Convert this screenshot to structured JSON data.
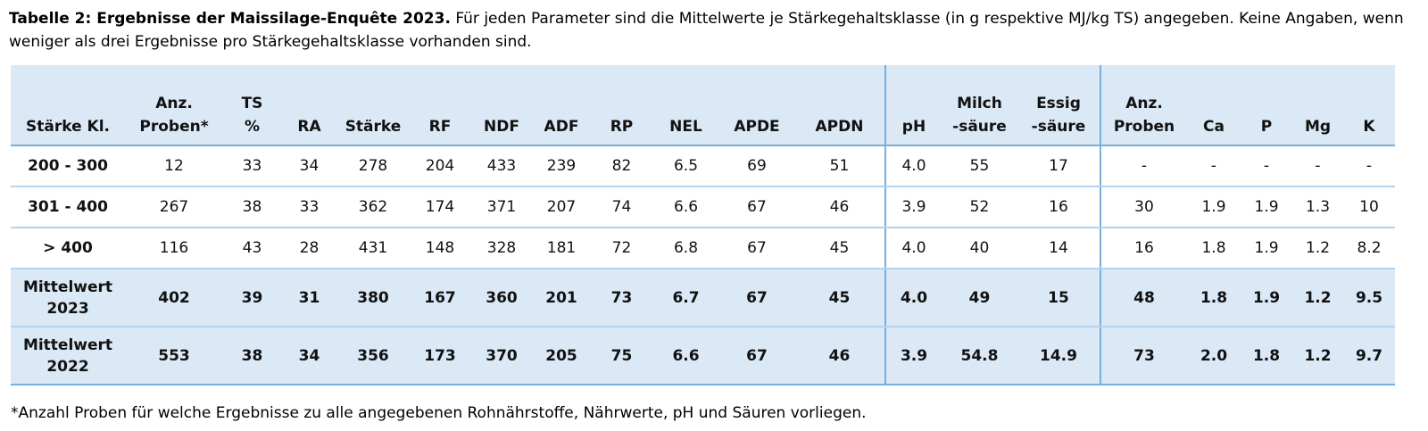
{
  "caption": {
    "bold": "Tabelle 2: Ergebnisse der Maissilage-Enquête 2023.",
    "rest": "Für jeden Parameter sind die Mittelwerte je Stärkegehaltsklasse (in g respektive MJ/kg TS) angegeben. Keine Angaben, wenn weniger als drei Ergebnisse pro Stärkegehaltsklasse vorhanden sind."
  },
  "table": {
    "divider_before": [
      12,
      15
    ],
    "columns": [
      {
        "id": "staerke-kl",
        "top": "",
        "bottom": "Stärke Kl."
      },
      {
        "id": "anz-proben",
        "top": "Anz.",
        "bottom": "Proben*"
      },
      {
        "id": "ts-prozent",
        "top": "TS",
        "bottom": "%"
      },
      {
        "id": "ra",
        "top": "",
        "bottom": "RA"
      },
      {
        "id": "staerke",
        "top": "",
        "bottom": "Stärke"
      },
      {
        "id": "rf",
        "top": "",
        "bottom": "RF"
      },
      {
        "id": "ndf",
        "top": "",
        "bottom": "NDF"
      },
      {
        "id": "adf",
        "top": "",
        "bottom": "ADF"
      },
      {
        "id": "rp",
        "top": "",
        "bottom": "RP"
      },
      {
        "id": "nel",
        "top": "",
        "bottom": "NEL"
      },
      {
        "id": "apde",
        "top": "",
        "bottom": "APDE"
      },
      {
        "id": "apdn",
        "top": "",
        "bottom": "APDN"
      },
      {
        "id": "ph",
        "top": "",
        "bottom": "pH"
      },
      {
        "id": "milchsaeure",
        "top": "Milch",
        "bottom": "-säure"
      },
      {
        "id": "essigsaeure",
        "top": "Essig",
        "bottom": "-säure"
      },
      {
        "id": "anz-proben-2",
        "top": "Anz.",
        "bottom": "Proben"
      },
      {
        "id": "ca",
        "top": "",
        "bottom": "Ca"
      },
      {
        "id": "p",
        "top": "",
        "bottom": "P"
      },
      {
        "id": "mg",
        "top": "",
        "bottom": "Mg"
      },
      {
        "id": "k",
        "top": "",
        "bottom": "K"
      }
    ],
    "rows": [
      {
        "id": "200-300",
        "label": "200 - 300",
        "shaded": false,
        "values": [
          "12",
          "33",
          "34",
          "278",
          "204",
          "433",
          "239",
          "82",
          "6.5",
          "69",
          "51",
          "4.0",
          "55",
          "17",
          "-",
          "-",
          "-",
          "-",
          "-"
        ]
      },
      {
        "id": "301-400",
        "label": "301 - 400",
        "shaded": false,
        "values": [
          "267",
          "38",
          "33",
          "362",
          "174",
          "371",
          "207",
          "74",
          "6.6",
          "67",
          "46",
          "3.9",
          "52",
          "16",
          "30",
          "1.9",
          "1.9",
          "1.3",
          "10"
        ]
      },
      {
        "id": "gt-400",
        "label": "> 400",
        "shaded": false,
        "values": [
          "116",
          "43",
          "28",
          "431",
          "148",
          "328",
          "181",
          "72",
          "6.8",
          "67",
          "45",
          "4.0",
          "40",
          "14",
          "16",
          "1.8",
          "1.9",
          "1.2",
          "8.2"
        ]
      },
      {
        "id": "mittelwert-2023",
        "label": "Mittelwert 2023",
        "shaded": true,
        "values": [
          "402",
          "39",
          "31",
          "380",
          "167",
          "360",
          "201",
          "73",
          "6.7",
          "67",
          "45",
          "4.0",
          "49",
          "15",
          "48",
          "1.8",
          "1.9",
          "1.2",
          "9.5"
        ]
      },
      {
        "id": "mittelwert-2022",
        "label": "Mittelwert 2022",
        "shaded": true,
        "values": [
          "553",
          "38",
          "34",
          "356",
          "173",
          "370",
          "205",
          "75",
          "6.6",
          "67",
          "46",
          "3.9",
          "54.8",
          "14.9",
          "73",
          "2.0",
          "1.8",
          "1.2",
          "9.7"
        ]
      }
    ]
  },
  "footnote": "*Anzahl Proben für welche Ergebnisse zu alle angegebenen Rohnährstoffe, Nährwerte, pH und Säuren vorliegen.",
  "colors": {
    "row_shade": "#dbe9f6",
    "strong_border": "#7aaedd",
    "light_border": "#b3d3ee",
    "text": "#111111"
  }
}
